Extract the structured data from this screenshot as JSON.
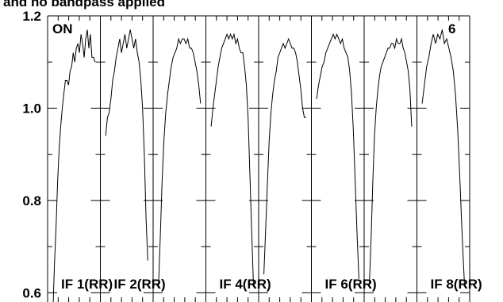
{
  "title": "and no bandpass applied",
  "corner_left": "ON",
  "corner_right": "6",
  "chart_data": {
    "type": "line",
    "title": "and no bandpass applied",
    "xlabel": "",
    "ylabel": "",
    "ylim": [
      0.58,
      1.2
    ],
    "yticks": [
      {
        "value": 0.6,
        "label": "0.6"
      },
      {
        "value": 0.8,
        "label": "0.8"
      },
      {
        "value": 1.0,
        "label": "1.0"
      },
      {
        "value": 1.2,
        "label": "1.2"
      }
    ],
    "grid": false,
    "panel_labels": [
      "IF 1(RR)",
      "IF 2(RR)",
      "",
      "IF 4(RR)",
      "",
      "IF 6(RR)",
      "",
      "IF 8(RR)"
    ],
    "series": [
      {
        "values": [
          0.56,
          0.66,
          0.74,
          0.84,
          0.91,
          0.96,
          1.0,
          1.03,
          1.06,
          1.06,
          1.05,
          1.08,
          1.09,
          1.12,
          1.1,
          1.13,
          1.14,
          1.12,
          1.16,
          1.14,
          1.11,
          1.15,
          1.17,
          1.13,
          1.16,
          1.11,
          1.11,
          1.1
        ]
      },
      {
        "values": [
          0.94,
          0.98,
          0.99,
          1.02,
          1.06,
          1.08,
          1.11,
          1.13,
          1.15,
          1.12,
          1.14,
          1.16,
          1.13,
          1.15,
          1.17,
          1.15,
          1.13,
          1.15,
          1.12,
          1.1,
          1.06,
          1.0,
          0.9,
          0.76,
          0.67
        ]
      },
      {
        "values": [
          0.61,
          0.72,
          0.84,
          0.93,
          0.99,
          1.03,
          1.06,
          1.09,
          1.11,
          1.12,
          1.13,
          1.15,
          1.14,
          1.15,
          1.15,
          1.14,
          1.15,
          1.13,
          1.13,
          1.12,
          1.1,
          1.08,
          1.05,
          1.01
        ]
      },
      {
        "values": [
          0.96,
          1.0,
          1.03,
          1.06,
          1.09,
          1.11,
          1.13,
          1.14,
          1.15,
          1.16,
          1.15,
          1.16,
          1.15,
          1.16,
          1.14,
          1.15,
          1.13,
          1.12,
          1.12,
          1.09,
          1.05,
          0.98,
          0.86,
          0.74,
          0.62
        ]
      },
      {
        "values": [
          0.64,
          0.74,
          0.84,
          0.93,
          0.99,
          1.03,
          1.06,
          1.08,
          1.11,
          1.12,
          1.13,
          1.14,
          1.13,
          1.14,
          1.15,
          1.14,
          1.13,
          1.13,
          1.12,
          1.1,
          1.07,
          1.04,
          1.0,
          0.98,
          0.98
        ]
      },
      {
        "values": [
          1.02,
          1.05,
          1.07,
          1.09,
          1.1,
          1.12,
          1.13,
          1.14,
          1.15,
          1.16,
          1.15,
          1.16,
          1.15,
          1.14,
          1.15,
          1.13,
          1.12,
          1.11,
          1.08,
          1.03,
          0.95,
          0.84,
          0.73,
          0.63
        ]
      },
      {
        "values": [
          0.62,
          0.72,
          0.84,
          0.94,
          1.0,
          1.04,
          1.07,
          1.09,
          1.1,
          1.11,
          1.12,
          1.13,
          1.13,
          1.14,
          1.14,
          1.13,
          1.15,
          1.14,
          1.14,
          1.15,
          1.13,
          1.12,
          1.1,
          1.08,
          1.04,
          0.96
        ]
      },
      {
        "values": [
          1.01,
          1.05,
          1.09,
          1.11,
          1.14,
          1.16,
          1.14,
          1.16,
          1.15,
          1.17,
          1.14,
          1.15,
          1.13,
          1.11,
          1.08,
          1.03,
          0.95,
          0.84,
          0.72,
          0.62
        ]
      }
    ]
  }
}
